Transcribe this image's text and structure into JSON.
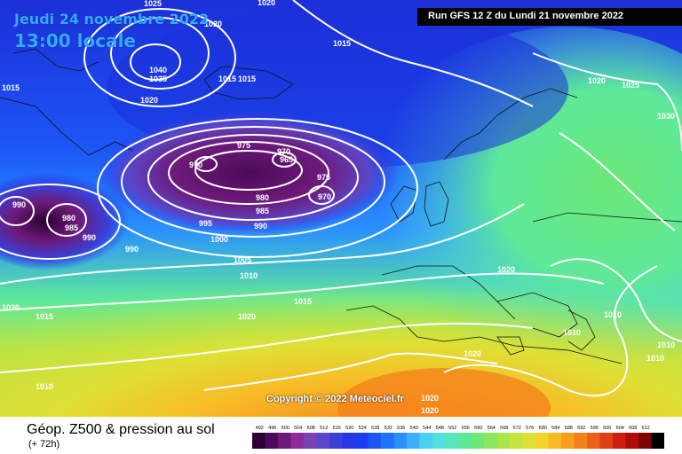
{
  "header": {
    "date": "Jeudi 24 novembre 2022",
    "time": "13:00 locale",
    "run": "Run GFS 12 Z du Lundi 21 novembre 2022"
  },
  "copyright": "Copyright © 2022 Meteociel.fr",
  "footer": {
    "title": "Géop. Z500 & pression au sol",
    "subtitle": "(+ 72h)"
  },
  "legend": {
    "ticks": [
      "492",
      "496",
      "500",
      "504",
      "508",
      "512",
      "516",
      "520",
      "524",
      "528",
      "532",
      "536",
      "540",
      "544",
      "548",
      "552",
      "556",
      "560",
      "564",
      "568",
      "572",
      "576",
      "580",
      "584",
      "588",
      "592",
      "596",
      "600",
      "604",
      "608",
      "612"
    ],
    "colors": [
      "#2a0033",
      "#4c0a5a",
      "#6e1a7a",
      "#8f2a99",
      "#7d3fb4",
      "#5a46c8",
      "#3a3fd8",
      "#2436e6",
      "#1a3cf0",
      "#1c55f6",
      "#1f71fb",
      "#2a90ff",
      "#3eb0ff",
      "#4ccff5",
      "#55e0e0",
      "#59e6bd",
      "#5de89a",
      "#6be878",
      "#88e85a",
      "#a8e64a",
      "#c6e43e",
      "#dfe035",
      "#f2d22d",
      "#f8bb26",
      "#f89f20",
      "#f4801b",
      "#ec6018",
      "#e04014",
      "#d01f10",
      "#b00a0a",
      "#800000",
      "#000000"
    ]
  },
  "isobars": [
    {
      "text": "1025",
      "id": "a"
    },
    {
      "text": "1020",
      "id": "b"
    },
    {
      "text": "1015",
      "id": "c"
    },
    {
      "text": "1040",
      "id": "d"
    },
    {
      "text": "1035",
      "id": "e"
    },
    {
      "text": "1015",
      "id": "f"
    },
    {
      "text": "1020",
      "id": "g"
    },
    {
      "text": "1015",
      "id": "h"
    },
    {
      "text": "975",
      "id": "i"
    },
    {
      "text": "970",
      "id": "j"
    },
    {
      "text": "970",
      "id": "k"
    },
    {
      "text": "965",
      "id": "l"
    },
    {
      "text": "975",
      "id": "m"
    },
    {
      "text": "970",
      "id": "n"
    },
    {
      "text": "980",
      "id": "o"
    },
    {
      "text": "985",
      "id": "p"
    },
    {
      "text": "990",
      "id": "q"
    },
    {
      "text": "990",
      "id": "r"
    },
    {
      "text": "980",
      "id": "s"
    },
    {
      "text": "985",
      "id": "t"
    },
    {
      "text": "990",
      "id": "u"
    },
    {
      "text": "990",
      "id": "v"
    },
    {
      "text": "995",
      "id": "w"
    },
    {
      "text": "1000",
      "id": "x"
    },
    {
      "text": "1005",
      "id": "y"
    },
    {
      "text": "1010",
      "id": "z"
    },
    {
      "text": "1015",
      "id": "aa"
    },
    {
      "text": "1020",
      "id": "ab"
    },
    {
      "text": "1020",
      "id": "ac"
    },
    {
      "text": "1015",
      "id": "ad"
    },
    {
      "text": "1010",
      "id": "ae"
    },
    {
      "text": "1020",
      "id": "af"
    },
    {
      "text": "1025",
      "id": "ag"
    },
    {
      "text": "1030",
      "id": "ah"
    },
    {
      "text": "1020",
      "id": "ai"
    },
    {
      "text": "1010",
      "id": "aj"
    },
    {
      "text": "1010",
      "id": "ak"
    },
    {
      "text": "1010",
      "id": "al"
    },
    {
      "text": "1010",
      "id": "am"
    },
    {
      "text": "1020",
      "id": "an"
    },
    {
      "text": "1020",
      "id": "ao"
    },
    {
      "text": "1020",
      "id": "ap"
    },
    {
      "text": "1015",
      "id": "aq"
    }
  ]
}
